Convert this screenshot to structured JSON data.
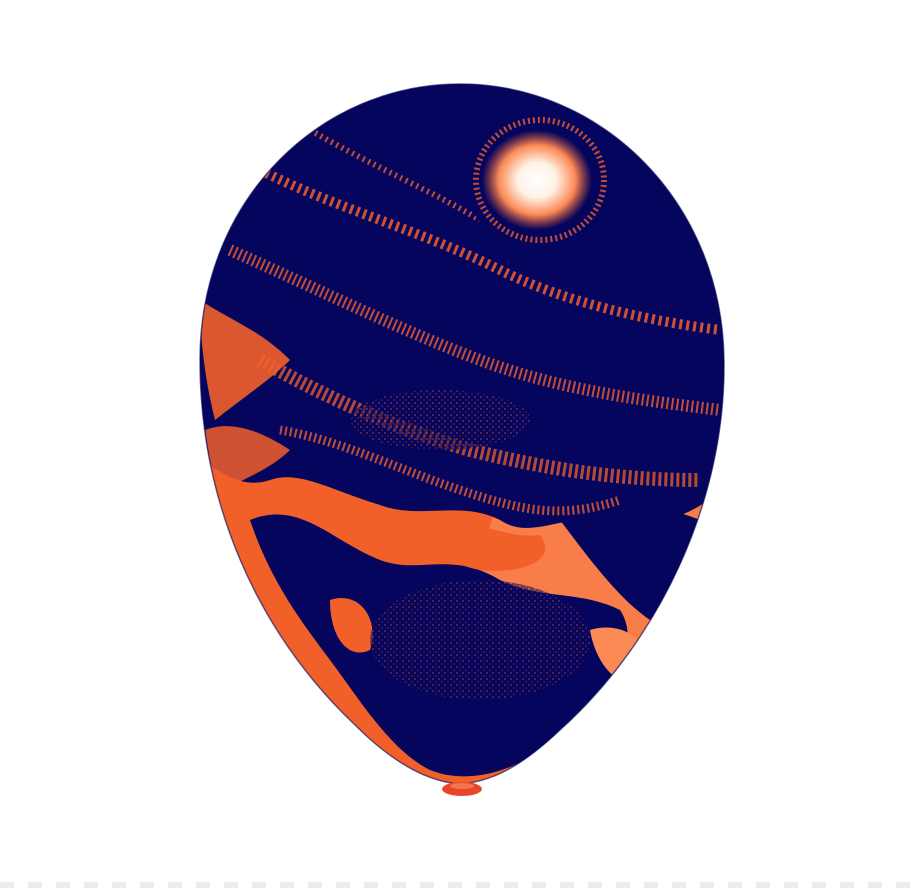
{
  "image": {
    "subject": "",
    "colors": {
      "background": "#ffffff",
      "balloon_dark": "#05055e",
      "balloon_orange": "#f2602a",
      "balloon_orange_light": "#fb8a55",
      "highlight": "#ffffff",
      "knot": "#e8462a"
    }
  }
}
